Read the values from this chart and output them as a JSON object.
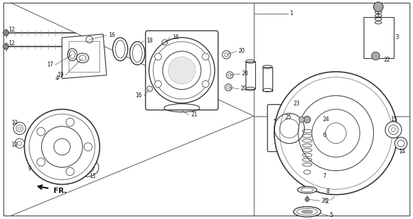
{
  "bg_color": "#ffffff",
  "line_color": "#333333",
  "fig_width": 6.02,
  "fig_height": 3.2,
  "dpi": 100
}
